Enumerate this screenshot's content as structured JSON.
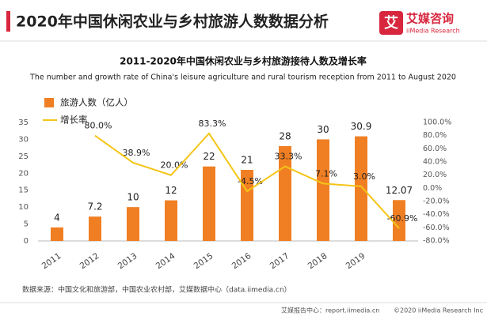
{
  "page_title": "2020年中国休闲农业与乡村旅游人数数据分析",
  "brand": {
    "name": "艾媒咨询",
    "sub": "iiMedia Research"
  },
  "source": "数据来源：中国文化和旅游部，中国农业农村部，艾媒数据中心（data.iimedia.cn）",
  "footer": {
    "site": "艾媒报告中心：report.iimedia.cn",
    "copyright": "©2020  iiMedia Research Inc"
  },
  "chart_data": {
    "type": "bar-line",
    "title": "2011-2020年中国休闲农业与乡村旅游接待人数及增长率",
    "subtitle": "The number and growth rate of China's leisure agriculture and rural tourism reception from 2011 to August 2020",
    "categories": [
      "2011",
      "2012",
      "2013",
      "2014",
      "2015",
      "2016",
      "2017",
      "2018",
      "2019",
      null
    ],
    "series": [
      {
        "name": "旅游人数（亿人）",
        "type": "bar",
        "color": "#f07f23",
        "values": [
          4,
          7.2,
          10,
          12,
          22,
          21,
          28,
          30,
          30.9,
          12.07
        ]
      },
      {
        "name": "增长率",
        "type": "line",
        "axis": "y2",
        "color": "#f5c518",
        "values": [
          null,
          80.0,
          38.9,
          20.0,
          83.3,
          -4.5,
          33.3,
          7.1,
          3.0,
          -60.9
        ],
        "value_labels": [
          null,
          "80.0%",
          "38.9%",
          "20.0%",
          "83.3%",
          "-4.5%",
          "33.3%",
          "7.1%",
          "3.0%",
          "-60.9%"
        ]
      }
    ],
    "ylim": [
      0,
      35
    ],
    "yticks": [
      0,
      5,
      10,
      15,
      20,
      25,
      30,
      35
    ],
    "y2lim": [
      -80,
      100
    ],
    "y2ticks": [
      {
        "value": -80,
        "label": "-80.0%"
      },
      {
        "value": -60,
        "label": "-60.0%"
      },
      {
        "value": -40,
        "label": "-40.0%"
      },
      {
        "value": -20,
        "label": "-20.0%"
      },
      {
        "value": 0,
        "label": "0.0%"
      },
      {
        "value": 20,
        "label": "20.0%"
      },
      {
        "value": 40,
        "label": "40.0%"
      },
      {
        "value": 60,
        "label": "60.0%"
      },
      {
        "value": 80,
        "label": "80.0%"
      },
      {
        "value": 100,
        "label": "100.0%"
      }
    ],
    "grid": false,
    "legend": "top-left"
  }
}
